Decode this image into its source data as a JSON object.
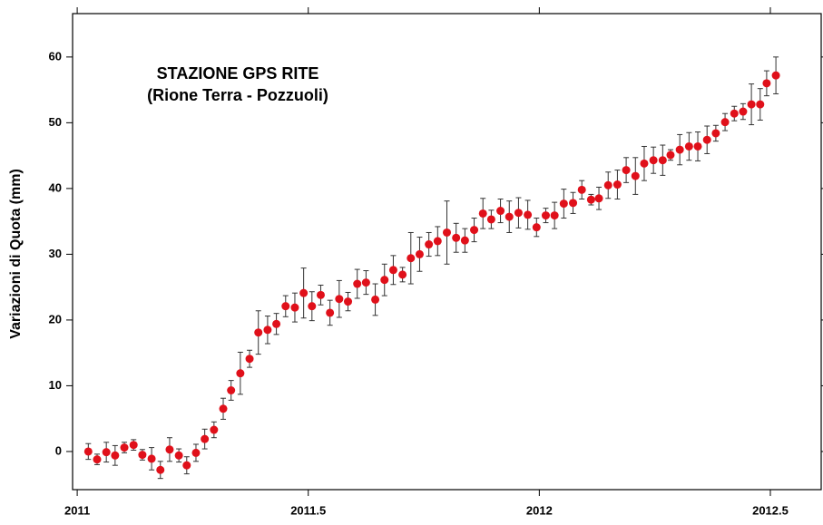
{
  "chart_data": {
    "type": "scatter",
    "title": "STAZIONE GPS RITE",
    "subtitle": "(Rione Terra - Pozzuoli)",
    "y_label": "Variazioni di Quota (mm)",
    "xlim": [
      2010.99,
      2012.61
    ],
    "ylim": [
      -5.8,
      66.6
    ],
    "xticks": [
      2011,
      2011.5,
      2012,
      2012.5
    ],
    "yticks": [
      0,
      10,
      20,
      30,
      40,
      50,
      60
    ],
    "x": [
      2011.024,
      2011.043,
      2011.063,
      2011.082,
      2011.102,
      2011.122,
      2011.141,
      2011.161,
      2011.18,
      2011.2,
      2011.22,
      2011.237,
      2011.257,
      2011.276,
      2011.296,
      2011.316,
      2011.333,
      2011.353,
      2011.373,
      2011.392,
      2011.412,
      2011.431,
      2011.451,
      2011.471,
      2011.49,
      2011.508,
      2011.527,
      2011.547,
      2011.567,
      2011.586,
      2011.606,
      2011.625,
      2011.645,
      2011.665,
      2011.684,
      2011.704,
      2011.722,
      2011.741,
      2011.761,
      2011.78,
      2011.8,
      2011.82,
      2011.839,
      2011.859,
      2011.878,
      2011.896,
      2011.916,
      2011.935,
      2011.955,
      2011.975,
      2011.994,
      2012.014,
      2012.033,
      2012.053,
      2012.073,
      2012.092,
      2012.112,
      2012.129,
      2012.149,
      2012.169,
      2012.188,
      2012.208,
      2012.227,
      2012.247,
      2012.267,
      2012.284,
      2012.304,
      2012.324,
      2012.343,
      2012.363,
      2012.382,
      2012.402,
      2012.422,
      2012.441,
      2012.459,
      2012.478,
      2012.492,
      2012.512
    ],
    "series": [
      {
        "color": "#e0101a",
        "values": [
          0,
          -1.2,
          -0.1,
          -0.6,
          0.6,
          1.0,
          -0.5,
          -1.1,
          -2.8,
          0.3,
          -0.6,
          -2.1,
          -0.2,
          1.9,
          3.3,
          6.5,
          9.3,
          11.9,
          14.1,
          18.1,
          18.5,
          19.4,
          22.1,
          21.9,
          24.1,
          22.1,
          23.8,
          21.1,
          23.2,
          22.8,
          25.5,
          25.7,
          23.1,
          26.1,
          27.6,
          26.9,
          29.4,
          30.0,
          31.5,
          32.0,
          33.3,
          32.5,
          32.1,
          33.7,
          36.2,
          35.3,
          36.6,
          35.7,
          36.3,
          36.0,
          34.1,
          35.9,
          35.9,
          37.7,
          37.8,
          39.8,
          38.3,
          38.5,
          40.5,
          40.6,
          42.8,
          41.9,
          43.8,
          44.3,
          44.3,
          45.1,
          45.9,
          46.4,
          46.4,
          47.4,
          48.4,
          50.1,
          51.4,
          51.7,
          52.8,
          52.8,
          56.0,
          57.2
        ],
        "errors": [
          1.2,
          0.8,
          1.5,
          1.5,
          0.8,
          0.8,
          0.8,
          1.7,
          1.3,
          1.8,
          1.0,
          1.3,
          1.3,
          1.5,
          1.2,
          1.6,
          1.5,
          3.2,
          1.3,
          3.3,
          2.1,
          1.6,
          1.6,
          2.2,
          3.8,
          2.2,
          1.5,
          1.9,
          2.8,
          1.4,
          2.2,
          1.8,
          2.4,
          2.4,
          2.2,
          1.1,
          3.9,
          2.6,
          1.8,
          2.2,
          4.8,
          2.2,
          1.8,
          1.8,
          2.3,
          1.4,
          1.8,
          2.4,
          2.3,
          2.2,
          1.4,
          1.1,
          2.0,
          2.2,
          1.6,
          1.4,
          0.8,
          1.7,
          2.0,
          2.2,
          1.9,
          2.8,
          2.6,
          2.0,
          2.3,
          0.8,
          2.3,
          2.1,
          2.2,
          2.1,
          1.2,
          1.3,
          1.1,
          1.2,
          3.1,
          2.4,
          1.9,
          2.8
        ]
      }
    ]
  }
}
